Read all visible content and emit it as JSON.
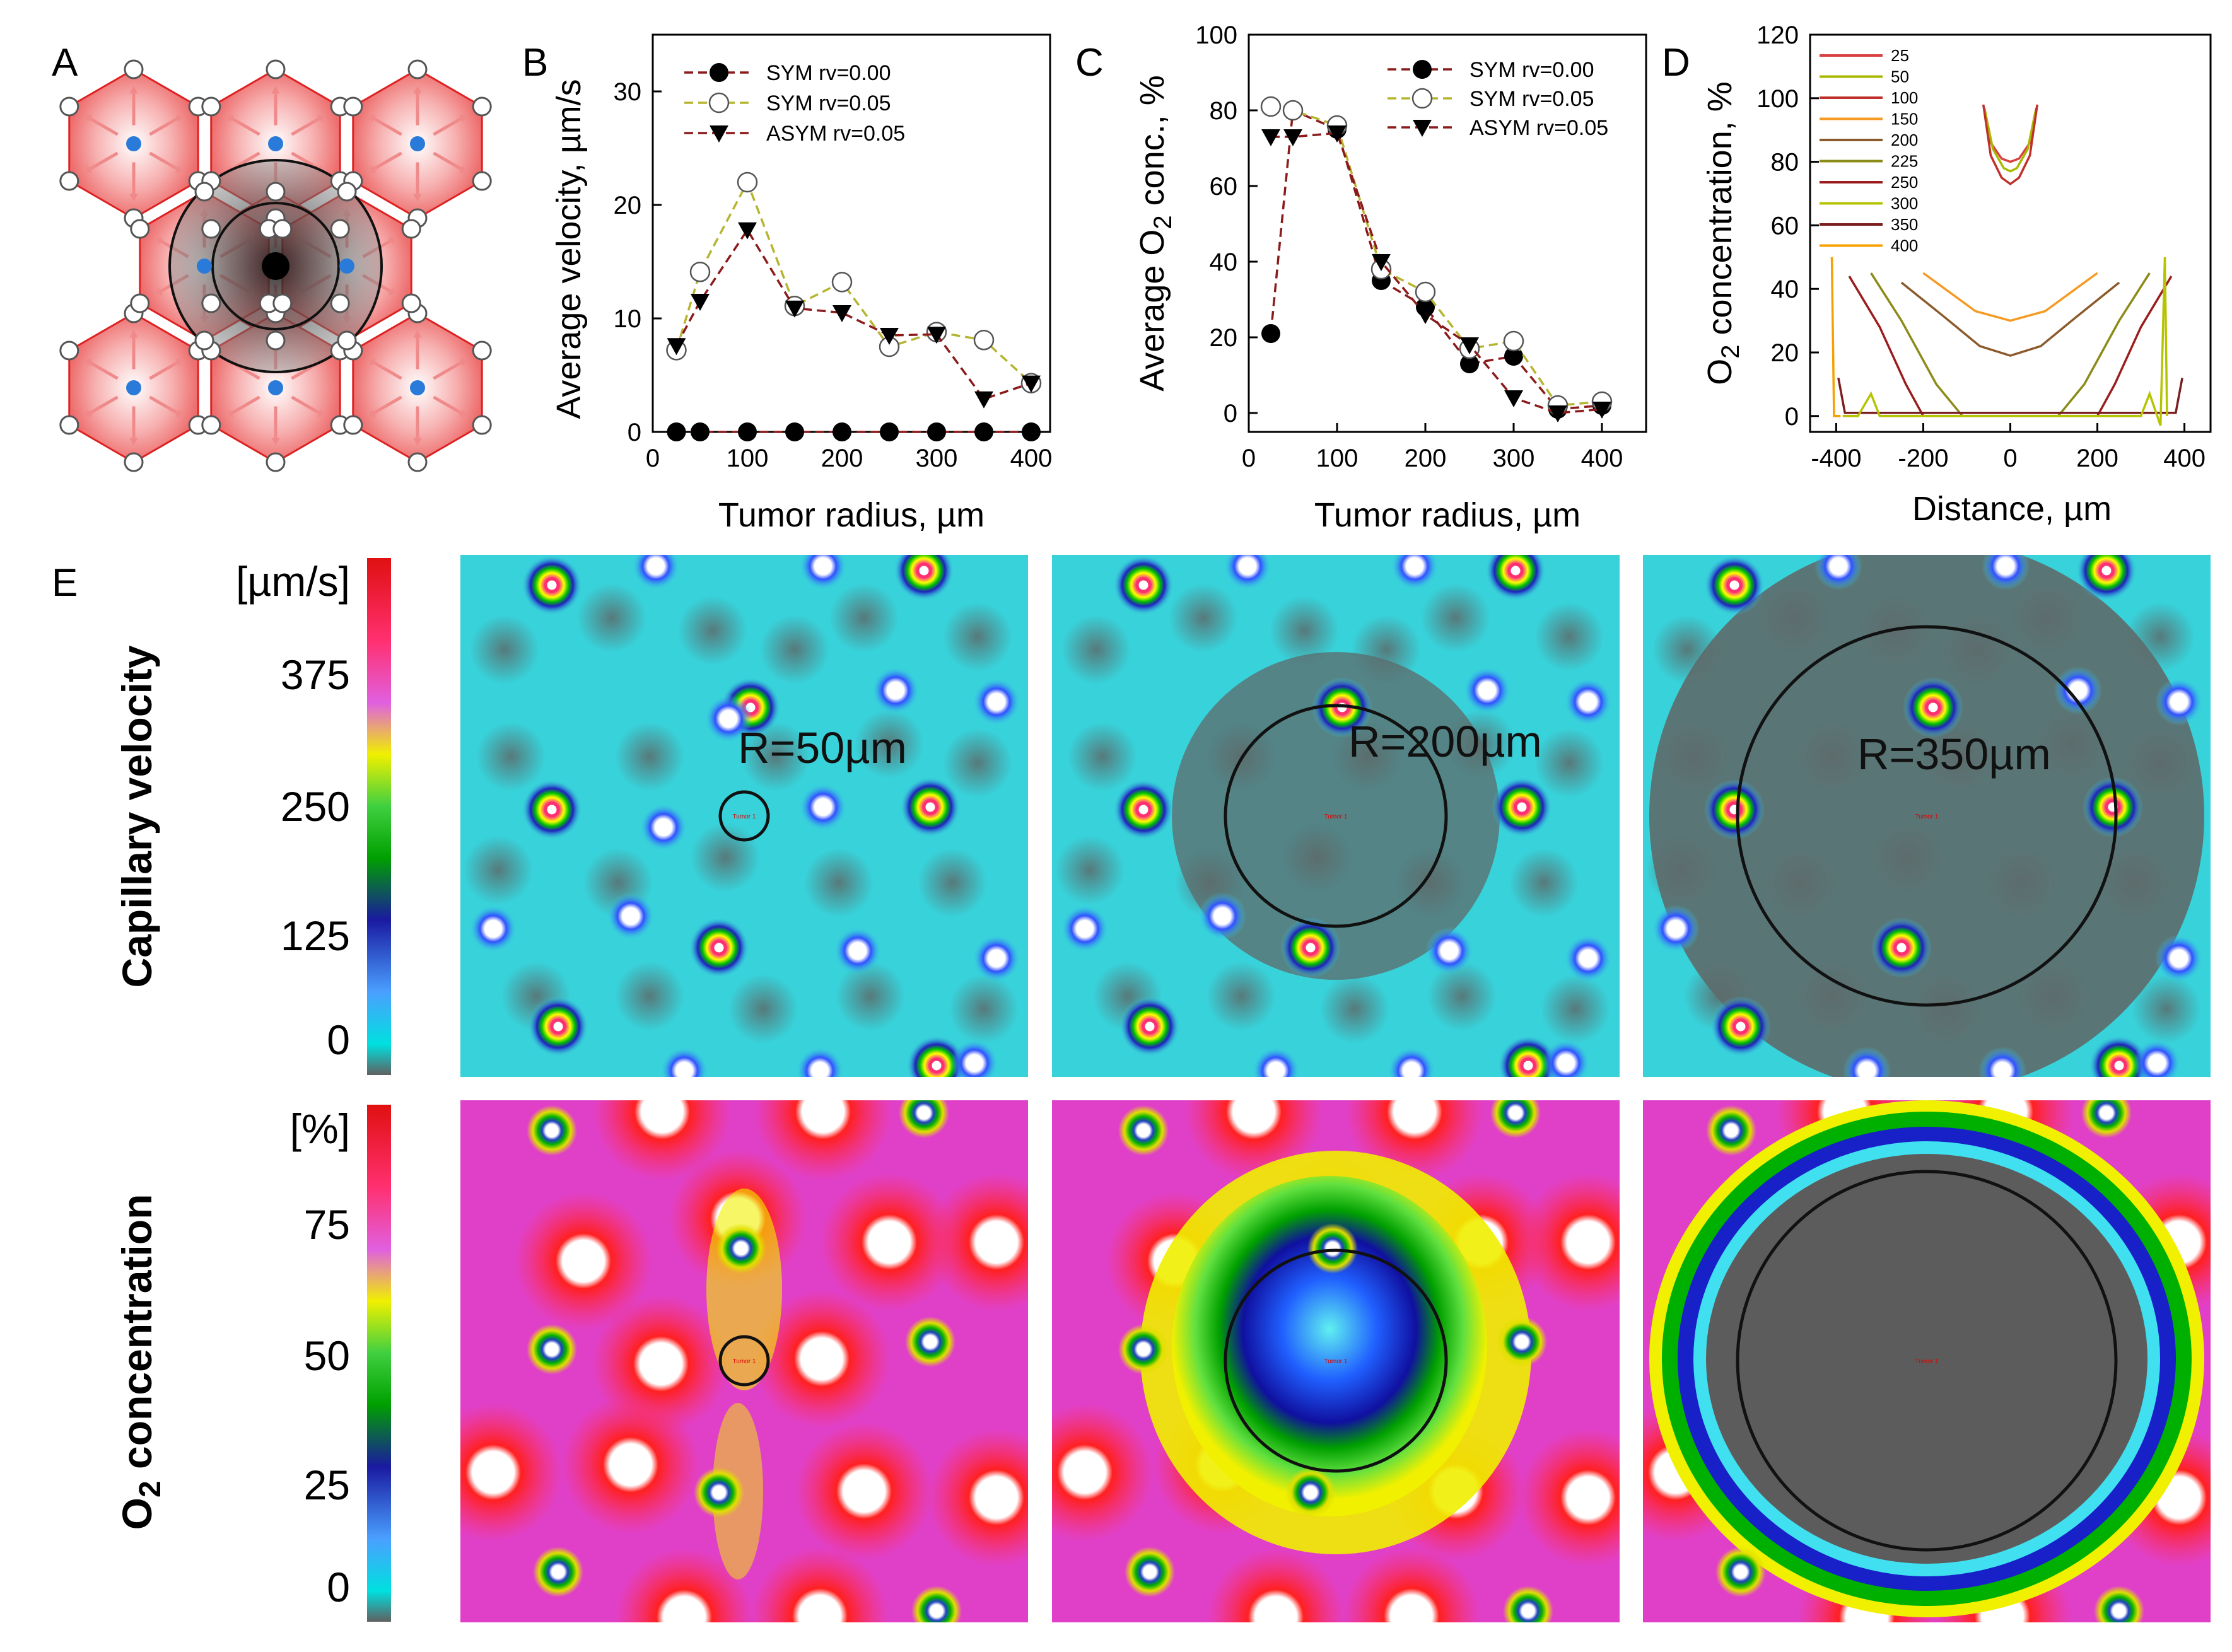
{
  "panel_labels": {
    "a": "A",
    "b": "B",
    "c": "C",
    "d": "D",
    "e": "E"
  },
  "chart_data": [
    {
      "id": "B",
      "type": "line",
      "xlabel": "Tumor radius, µm",
      "ylabel": "Average velocity, µm/s",
      "xlim": [
        0,
        420
      ],
      "ylim": [
        0,
        35
      ],
      "xticks": [
        0,
        100,
        200,
        300,
        400
      ],
      "yticks": [
        0,
        10,
        20,
        30
      ],
      "legend_position": "top-center",
      "series": [
        {
          "name": "SYM rv=0.00",
          "color": "#8b1a1a",
          "marker": "filled-circle",
          "x": [
            25,
            50,
            100,
            150,
            200,
            250,
            300,
            350,
            400
          ],
          "y": [
            0,
            0,
            0,
            0,
            0,
            0,
            0,
            0,
            0
          ]
        },
        {
          "name": "SYM rv=0.05",
          "color": "#b5b530",
          "marker": "open-circle",
          "x": [
            25,
            50,
            100,
            150,
            200,
            250,
            300,
            350,
            400
          ],
          "y": [
            7.2,
            14.1,
            22,
            11.1,
            13.2,
            7.5,
            8.8,
            8.1,
            4.3
          ]
        },
        {
          "name": "ASYM rv=0.05",
          "color": "#8b1a1a",
          "marker": "filled-triangle-down",
          "x": [
            25,
            50,
            100,
            150,
            200,
            250,
            300,
            350,
            400
          ],
          "y": [
            7.6,
            11.5,
            17.8,
            10.9,
            10.5,
            8.5,
            8.6,
            2.9,
            4.3
          ]
        }
      ]
    },
    {
      "id": "C",
      "type": "line",
      "xlabel": "Tumor radius, µm",
      "ylabel_main": "Average O",
      "ylabel_sub": "2",
      "ylabel_tail": " conc., %",
      "xlim": [
        0,
        450
      ],
      "ylim": [
        -5,
        100
      ],
      "xticks": [
        0,
        100,
        200,
        300,
        400
      ],
      "yticks": [
        0,
        20,
        40,
        60,
        80,
        100
      ],
      "legend_position": "top-right",
      "series": [
        {
          "name": "SYM rv=0.00",
          "color": "#8b1a1a",
          "marker": "filled-circle",
          "x": [
            25,
            50,
            100,
            150,
            200,
            250,
            300,
            350,
            400
          ],
          "y": [
            21,
            80,
            75,
            35,
            28,
            13,
            15,
            1,
            2
          ]
        },
        {
          "name": "SYM rv=0.05",
          "color": "#b5b530",
          "marker": "open-circle",
          "x": [
            25,
            50,
            100,
            150,
            200,
            250,
            300,
            350,
            400
          ],
          "y": [
            81,
            80,
            76,
            38,
            32,
            17,
            19,
            2,
            3
          ]
        },
        {
          "name": "ASYM rv=0.05",
          "color": "#8b1a1a",
          "marker": "filled-triangle-down",
          "x": [
            25,
            50,
            100,
            150,
            200,
            250,
            300,
            350,
            400
          ],
          "y": [
            73,
            73,
            74,
            40,
            26,
            18,
            4,
            0,
            1
          ]
        }
      ]
    },
    {
      "id": "D",
      "type": "line",
      "xlabel": "Distance, µm",
      "ylabel_main": "O",
      "ylabel_sub": "2",
      "ylabel_tail": " concentration, %",
      "xlim": [
        -460,
        460
      ],
      "ylim": [
        -5,
        120
      ],
      "xticks": [
        -400,
        -200,
        0,
        200,
        400
      ],
      "yticks": [
        0,
        20,
        40,
        60,
        80,
        100,
        120
      ],
      "legend_position": "top-left",
      "series": [
        {
          "name": "25",
          "color": "#d94040"
        },
        {
          "name": "50",
          "color": "#a8b800"
        },
        {
          "name": "100",
          "color": "#c0302a"
        },
        {
          "name": "150",
          "color": "#f59a23"
        },
        {
          "name": "200",
          "color": "#8b5a2b"
        },
        {
          "name": "225",
          "color": "#8b8b1a"
        },
        {
          "name": "250",
          "color": "#9b1c1c"
        },
        {
          "name": "300",
          "color": "#b5c400"
        },
        {
          "name": "350",
          "color": "#7a1e1e"
        },
        {
          "name": "400",
          "color": "#f7a000"
        }
      ]
    }
  ],
  "panel_e": {
    "row1_title": "Capillary velocity",
    "row1_unit": "[µm/s]",
    "row1_ticks": [
      "375",
      "250",
      "125",
      "0"
    ],
    "row2_title_main": "O",
    "row2_title_sub": "2",
    "row2_title_tail": " concentration",
    "row2_unit": "[%]",
    "row2_ticks": [
      "75",
      "50",
      "25",
      "0"
    ],
    "radius_labels": [
      "R=50µm",
      "R=200µm",
      "R=350µm"
    ],
    "tumor_label": "Tumor 1"
  }
}
